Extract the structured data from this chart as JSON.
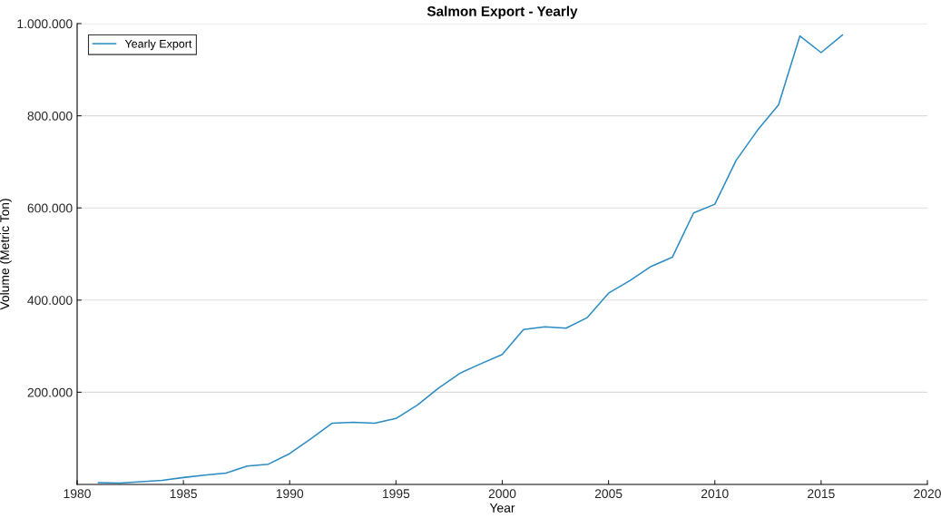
{
  "chart_data": {
    "type": "line",
    "title": "Salmon Export - Yearly",
    "xlabel": "Year",
    "ylabel": "Volume (Metric Ton)",
    "x": [
      1981,
      1982,
      1983,
      1984,
      1985,
      1986,
      1987,
      1988,
      1989,
      1990,
      1991,
      1992,
      1993,
      1994,
      1995,
      1996,
      1997,
      1998,
      1999,
      2000,
      2001,
      2002,
      2003,
      2004,
      2005,
      2006,
      2007,
      2008,
      2009,
      2010,
      2011,
      2012,
      2013,
      2014,
      2015,
      2016
    ],
    "series": [
      {
        "name": "Yearly Export",
        "color": "#2b8cc4",
        "values": [
          4000,
          3000,
          6000,
          8700,
          15000,
          20000,
          24500,
          40000,
          44000,
          67000,
          99000,
          133000,
          135000,
          133000,
          143000,
          172000,
          209000,
          241000,
          262000,
          282000,
          336000,
          342000,
          339000,
          362000,
          415000,
          442000,
          473000,
          493000,
          589000,
          608000,
          703000,
          768000,
          824000,
          973000,
          937000,
          975000
        ]
      }
    ],
    "xlim": [
      1980,
      2020
    ],
    "xticks": [
      1980,
      1985,
      1990,
      1995,
      2000,
      2005,
      2010,
      2015,
      2020
    ],
    "ylim": [
      0,
      1000000
    ],
    "yticks": [
      {
        "value": 200000,
        "label": "200.000"
      },
      {
        "value": 400000,
        "label": "400.000"
      },
      {
        "value": 600000,
        "label": "600.000"
      },
      {
        "value": 800000,
        "label": "800.000"
      },
      {
        "value": 1000000,
        "label": "1.000.000"
      }
    ],
    "grid": "y",
    "legend": "top left",
    "marker": "none",
    "line_style": "solid"
  }
}
